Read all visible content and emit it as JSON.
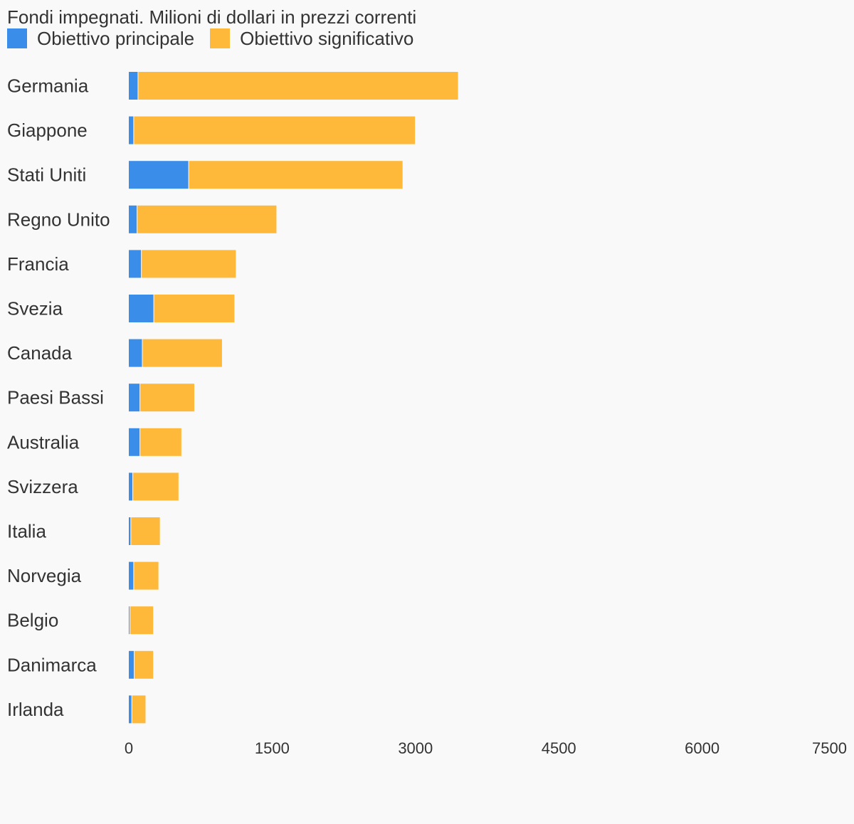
{
  "chart_data": {
    "type": "bar",
    "orientation": "horizontal",
    "stacked": true,
    "subtitle": "Fondi impegnati. Milioni di dollari in prezzi correnti",
    "categories": [
      "Germania",
      "Giappone",
      "Stati Uniti",
      "Regno Unito",
      "Francia",
      "Svezia",
      "Canada",
      "Paesi Bassi",
      "Australia",
      "Svizzera",
      "Italia",
      "Norvegia",
      "Belgio",
      "Danimarca",
      "Irlanda"
    ],
    "series": [
      {
        "name": "Obiettivo principale",
        "color": "#3a8ee9",
        "values": [
          100,
          55,
          630,
          90,
          135,
          265,
          145,
          120,
          120,
          45,
          25,
          55,
          15,
          60,
          35
        ]
      },
      {
        "name": "Obiettivo significativo",
        "color": "#ffb93a",
        "values": [
          3345,
          2940,
          2235,
          1455,
          985,
          840,
          830,
          565,
          430,
          475,
          300,
          255,
          240,
          195,
          140
        ]
      }
    ],
    "xlim": [
      0,
      7500
    ],
    "xticks": [
      0,
      1500,
      3000,
      4500,
      6000,
      7500
    ],
    "xlabel": "",
    "ylabel": "",
    "grid": false,
    "legend_position": "top-left"
  }
}
